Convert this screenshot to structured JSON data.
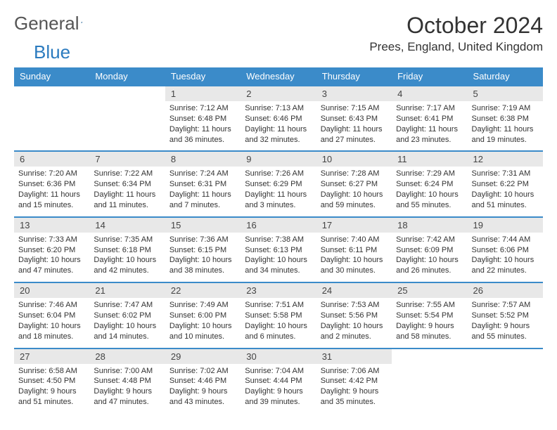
{
  "brand": {
    "part1": "General",
    "part2": "Blue",
    "text_color": "#555555",
    "accent_color": "#2b7bbf"
  },
  "title": "October 2024",
  "location": "Prees, England, United Kingdom",
  "header_bg": "#3b8bc9",
  "header_fg": "#ffffff",
  "daynum_bg": "#e8e8e8",
  "row_border": "#3b8bc9",
  "weekdays": [
    "Sunday",
    "Monday",
    "Tuesday",
    "Wednesday",
    "Thursday",
    "Friday",
    "Saturday"
  ],
  "weeks": [
    [
      {
        "n": "",
        "lines": []
      },
      {
        "n": "",
        "lines": []
      },
      {
        "n": "1",
        "lines": [
          "Sunrise: 7:12 AM",
          "Sunset: 6:48 PM",
          "Daylight: 11 hours",
          "and 36 minutes."
        ]
      },
      {
        "n": "2",
        "lines": [
          "Sunrise: 7:13 AM",
          "Sunset: 6:46 PM",
          "Daylight: 11 hours",
          "and 32 minutes."
        ]
      },
      {
        "n": "3",
        "lines": [
          "Sunrise: 7:15 AM",
          "Sunset: 6:43 PM",
          "Daylight: 11 hours",
          "and 27 minutes."
        ]
      },
      {
        "n": "4",
        "lines": [
          "Sunrise: 7:17 AM",
          "Sunset: 6:41 PM",
          "Daylight: 11 hours",
          "and 23 minutes."
        ]
      },
      {
        "n": "5",
        "lines": [
          "Sunrise: 7:19 AM",
          "Sunset: 6:38 PM",
          "Daylight: 11 hours",
          "and 19 minutes."
        ]
      }
    ],
    [
      {
        "n": "6",
        "lines": [
          "Sunrise: 7:20 AM",
          "Sunset: 6:36 PM",
          "Daylight: 11 hours",
          "and 15 minutes."
        ]
      },
      {
        "n": "7",
        "lines": [
          "Sunrise: 7:22 AM",
          "Sunset: 6:34 PM",
          "Daylight: 11 hours",
          "and 11 minutes."
        ]
      },
      {
        "n": "8",
        "lines": [
          "Sunrise: 7:24 AM",
          "Sunset: 6:31 PM",
          "Daylight: 11 hours",
          "and 7 minutes."
        ]
      },
      {
        "n": "9",
        "lines": [
          "Sunrise: 7:26 AM",
          "Sunset: 6:29 PM",
          "Daylight: 11 hours",
          "and 3 minutes."
        ]
      },
      {
        "n": "10",
        "lines": [
          "Sunrise: 7:28 AM",
          "Sunset: 6:27 PM",
          "Daylight: 10 hours",
          "and 59 minutes."
        ]
      },
      {
        "n": "11",
        "lines": [
          "Sunrise: 7:29 AM",
          "Sunset: 6:24 PM",
          "Daylight: 10 hours",
          "and 55 minutes."
        ]
      },
      {
        "n": "12",
        "lines": [
          "Sunrise: 7:31 AM",
          "Sunset: 6:22 PM",
          "Daylight: 10 hours",
          "and 51 minutes."
        ]
      }
    ],
    [
      {
        "n": "13",
        "lines": [
          "Sunrise: 7:33 AM",
          "Sunset: 6:20 PM",
          "Daylight: 10 hours",
          "and 47 minutes."
        ]
      },
      {
        "n": "14",
        "lines": [
          "Sunrise: 7:35 AM",
          "Sunset: 6:18 PM",
          "Daylight: 10 hours",
          "and 42 minutes."
        ]
      },
      {
        "n": "15",
        "lines": [
          "Sunrise: 7:36 AM",
          "Sunset: 6:15 PM",
          "Daylight: 10 hours",
          "and 38 minutes."
        ]
      },
      {
        "n": "16",
        "lines": [
          "Sunrise: 7:38 AM",
          "Sunset: 6:13 PM",
          "Daylight: 10 hours",
          "and 34 minutes."
        ]
      },
      {
        "n": "17",
        "lines": [
          "Sunrise: 7:40 AM",
          "Sunset: 6:11 PM",
          "Daylight: 10 hours",
          "and 30 minutes."
        ]
      },
      {
        "n": "18",
        "lines": [
          "Sunrise: 7:42 AM",
          "Sunset: 6:09 PM",
          "Daylight: 10 hours",
          "and 26 minutes."
        ]
      },
      {
        "n": "19",
        "lines": [
          "Sunrise: 7:44 AM",
          "Sunset: 6:06 PM",
          "Daylight: 10 hours",
          "and 22 minutes."
        ]
      }
    ],
    [
      {
        "n": "20",
        "lines": [
          "Sunrise: 7:46 AM",
          "Sunset: 6:04 PM",
          "Daylight: 10 hours",
          "and 18 minutes."
        ]
      },
      {
        "n": "21",
        "lines": [
          "Sunrise: 7:47 AM",
          "Sunset: 6:02 PM",
          "Daylight: 10 hours",
          "and 14 minutes."
        ]
      },
      {
        "n": "22",
        "lines": [
          "Sunrise: 7:49 AM",
          "Sunset: 6:00 PM",
          "Daylight: 10 hours",
          "and 10 minutes."
        ]
      },
      {
        "n": "23",
        "lines": [
          "Sunrise: 7:51 AM",
          "Sunset: 5:58 PM",
          "Daylight: 10 hours",
          "and 6 minutes."
        ]
      },
      {
        "n": "24",
        "lines": [
          "Sunrise: 7:53 AM",
          "Sunset: 5:56 PM",
          "Daylight: 10 hours",
          "and 2 minutes."
        ]
      },
      {
        "n": "25",
        "lines": [
          "Sunrise: 7:55 AM",
          "Sunset: 5:54 PM",
          "Daylight: 9 hours",
          "and 58 minutes."
        ]
      },
      {
        "n": "26",
        "lines": [
          "Sunrise: 7:57 AM",
          "Sunset: 5:52 PM",
          "Daylight: 9 hours",
          "and 55 minutes."
        ]
      }
    ],
    [
      {
        "n": "27",
        "lines": [
          "Sunrise: 6:58 AM",
          "Sunset: 4:50 PM",
          "Daylight: 9 hours",
          "and 51 minutes."
        ]
      },
      {
        "n": "28",
        "lines": [
          "Sunrise: 7:00 AM",
          "Sunset: 4:48 PM",
          "Daylight: 9 hours",
          "and 47 minutes."
        ]
      },
      {
        "n": "29",
        "lines": [
          "Sunrise: 7:02 AM",
          "Sunset: 4:46 PM",
          "Daylight: 9 hours",
          "and 43 minutes."
        ]
      },
      {
        "n": "30",
        "lines": [
          "Sunrise: 7:04 AM",
          "Sunset: 4:44 PM",
          "Daylight: 9 hours",
          "and 39 minutes."
        ]
      },
      {
        "n": "31",
        "lines": [
          "Sunrise: 7:06 AM",
          "Sunset: 4:42 PM",
          "Daylight: 9 hours",
          "and 35 minutes."
        ]
      },
      {
        "n": "",
        "lines": []
      },
      {
        "n": "",
        "lines": []
      }
    ]
  ]
}
